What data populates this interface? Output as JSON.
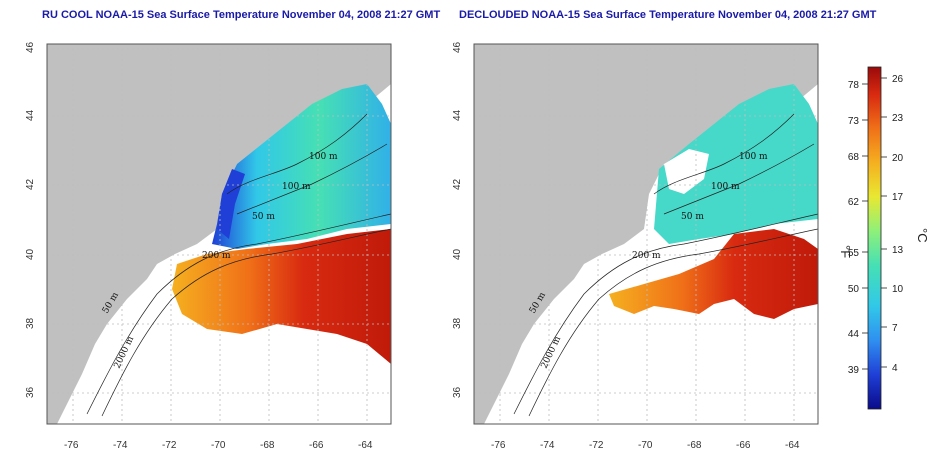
{
  "panels": [
    {
      "title": "RU COOL NOAA-15 Sea Surface Temperature November 04, 2008 21:27 GMT",
      "contour_labels": [
        "100 m",
        "100 m",
        "50 m",
        "200 m",
        "50 m",
        "2000 m"
      ]
    },
    {
      "title": "DECLOUDED NOAA-15 Sea Surface Temperature November 04, 2008 21:27 GMT",
      "contour_labels": [
        "100 m",
        "100 m",
        "50 m",
        "200 m",
        "50 m",
        "2000 m"
      ]
    }
  ],
  "axes": {
    "x_ticks": [
      "-76",
      "-74",
      "-72",
      "-70",
      "-68",
      "-66",
      "-64"
    ],
    "y_ticks": [
      "46",
      "44",
      "42",
      "40",
      "38",
      "36"
    ]
  },
  "colorbar": {
    "fahrenheit_ticks": [
      "78",
      "73",
      "68",
      "62",
      "55",
      "50",
      "44",
      "39"
    ],
    "celsius_ticks": [
      "26",
      "23",
      "20",
      "17",
      "13",
      "10",
      "7",
      "4"
    ],
    "f_unit": "°F",
    "c_unit": "°C",
    "colors": [
      "#0a0a8a",
      "#1f3fd6",
      "#2f8ff0",
      "#31c8e8",
      "#46e0b4",
      "#8ef07a",
      "#e8e832",
      "#f5b020",
      "#f07018",
      "#d82a10",
      "#9a0a0a"
    ]
  },
  "colors": {
    "land": "#c0c0c0",
    "title": "#1a1aa8",
    "grid": "#bdbdbd"
  }
}
